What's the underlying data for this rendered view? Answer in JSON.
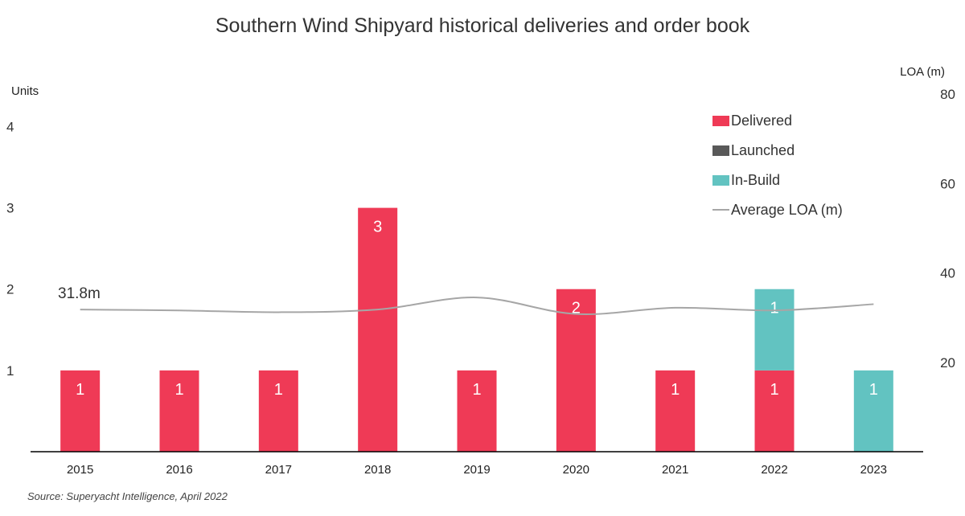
{
  "chart_data": {
    "type": "bar",
    "title": "Southern Wind Shipyard historical deliveries and order book",
    "ylabel": "Units",
    "y2label": "LOA (m)",
    "ylim": [
      0,
      4.4
    ],
    "y2lim": [
      0,
      80
    ],
    "yticks": [
      1,
      2,
      3,
      4
    ],
    "y2ticks": [
      20,
      40,
      60,
      80
    ],
    "stacked": true,
    "categories": [
      "2015",
      "2016",
      "2017",
      "2018",
      "2019",
      "2020",
      "2021",
      "2022",
      "2023"
    ],
    "series": [
      {
        "name": "Delivered",
        "kind": "bar",
        "color": "#ef3a56",
        "values": [
          1,
          1,
          1,
          3,
          1,
          2,
          1,
          1,
          0
        ]
      },
      {
        "name": "Launched",
        "kind": "bar",
        "color": "#595959",
        "values": [
          0,
          0,
          0,
          0,
          0,
          0,
          0,
          0,
          0
        ]
      },
      {
        "name": "In-Build",
        "kind": "bar",
        "color": "#62c3c1",
        "values": [
          0,
          0,
          0,
          0,
          0,
          0,
          0,
          1,
          1
        ]
      },
      {
        "name": "Average LOA (m)",
        "kind": "line",
        "axis": "right",
        "color": "#a6a6a6",
        "values": [
          31.8,
          31.6,
          31.2,
          31.8,
          34.5,
          30.8,
          32.2,
          31.6,
          33.0
        ]
      }
    ],
    "annotations": [
      {
        "text": "31.8m"
      }
    ],
    "legend_position": "top-right",
    "grid": false
  },
  "source": "Source: Superyacht Intelligence, April 2022"
}
